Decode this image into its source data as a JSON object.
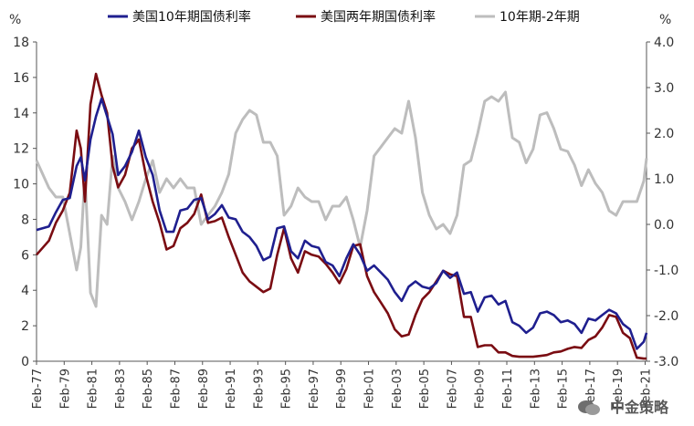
{
  "chart_data": {
    "type": "line",
    "units": {
      "left": "%",
      "right": "%"
    },
    "left_axis": {
      "range": [
        0,
        18
      ],
      "ticks": [
        "0",
        "2",
        "4",
        "6",
        "8",
        "10",
        "12",
        "14",
        "16",
        "18"
      ]
    },
    "right_axis": {
      "range": [
        -3.0,
        4.0
      ],
      "ticks": [
        "-3.0",
        "-2.0",
        "-1.0",
        "0.0",
        "1.0",
        "2.0",
        "3.0",
        "4.0"
      ]
    },
    "x_ticks": [
      "Feb-77",
      "Feb-79",
      "Feb-81",
      "Feb-83",
      "Feb-85",
      "Feb-87",
      "Feb-89",
      "Feb-91",
      "Feb-93",
      "Feb-95",
      "Feb-97",
      "Feb-99",
      "Feb-01",
      "Feb-03",
      "Feb-05",
      "Feb-07",
      "Feb-09",
      "Feb-11",
      "Feb-13",
      "Feb-15",
      "Feb-17",
      "Feb-19",
      "Feb-21"
    ],
    "x": [
      1977.1,
      1978.0,
      1978.5,
      1979.0,
      1979.5,
      1980.0,
      1980.3,
      1980.6,
      1981.0,
      1981.4,
      1981.8,
      1982.2,
      1982.6,
      1983.0,
      1983.5,
      1984.0,
      1984.5,
      1985.0,
      1985.5,
      1986.0,
      1986.5,
      1987.0,
      1987.5,
      1988.0,
      1988.5,
      1989.0,
      1989.5,
      1990.0,
      1990.5,
      1991.0,
      1991.5,
      1992.0,
      1992.5,
      1993.0,
      1993.5,
      1994.0,
      1994.5,
      1995.0,
      1995.5,
      1996.0,
      1996.5,
      1997.0,
      1997.5,
      1998.0,
      1998.5,
      1999.0,
      1999.5,
      2000.0,
      2000.5,
      2001.0,
      2001.5,
      2002.0,
      2002.5,
      2003.0,
      2003.5,
      2004.0,
      2004.5,
      2005.0,
      2005.5,
      2006.0,
      2006.5,
      2007.0,
      2007.5,
      2008.0,
      2008.5,
      2009.0,
      2009.5,
      2010.0,
      2010.5,
      2011.0,
      2011.5,
      2012.0,
      2012.5,
      2013.0,
      2013.5,
      2014.0,
      2014.5,
      2015.0,
      2015.5,
      2016.0,
      2016.5,
      2017.0,
      2017.5,
      2018.0,
      2018.5,
      2019.0,
      2019.5,
      2020.0,
      2020.5,
      2021.0,
      2021.2
    ],
    "series": [
      {
        "name": "美国10年期国债利率",
        "axis": "left",
        "color": "#1f1f8f",
        "values": [
          7.4,
          7.6,
          8.4,
          9.1,
          9.2,
          11.0,
          11.5,
          10.2,
          12.5,
          13.8,
          14.8,
          13.8,
          12.8,
          10.5,
          11.0,
          11.8,
          13.0,
          11.5,
          10.5,
          8.5,
          7.3,
          7.3,
          8.5,
          8.6,
          9.1,
          9.2,
          8.0,
          8.3,
          8.8,
          8.1,
          8.0,
          7.3,
          7.0,
          6.5,
          5.7,
          5.9,
          7.5,
          7.6,
          6.2,
          5.8,
          6.8,
          6.5,
          6.4,
          5.6,
          5.4,
          4.8,
          5.8,
          6.6,
          6.0,
          5.1,
          5.4,
          5.0,
          4.6,
          3.9,
          3.4,
          4.2,
          4.5,
          4.2,
          4.1,
          4.4,
          5.1,
          4.7,
          5.0,
          3.8,
          3.9,
          2.8,
          3.6,
          3.7,
          3.2,
          3.4,
          2.2,
          2.0,
          1.6,
          1.9,
          2.7,
          2.8,
          2.6,
          2.2,
          2.3,
          2.1,
          1.6,
          2.4,
          2.3,
          2.6,
          2.9,
          2.7,
          2.1,
          1.8,
          0.7,
          1.1,
          1.6
        ]
      },
      {
        "name": "美国两年期国债利率",
        "axis": "left",
        "color": "#7a0c12",
        "values": [
          6.0,
          6.8,
          7.8,
          8.5,
          9.5,
          13.0,
          12.0,
          9.0,
          14.5,
          16.2,
          15.0,
          14.0,
          11.0,
          9.8,
          10.5,
          12.0,
          12.5,
          10.5,
          9.0,
          7.8,
          6.3,
          6.5,
          7.5,
          7.8,
          8.3,
          9.4,
          7.8,
          7.9,
          8.1,
          7.0,
          6.0,
          5.0,
          4.5,
          4.2,
          3.9,
          4.1,
          6.0,
          7.5,
          5.8,
          5.0,
          6.2,
          6.0,
          5.9,
          5.5,
          5.0,
          4.4,
          5.2,
          6.5,
          6.6,
          4.8,
          3.9,
          3.3,
          2.7,
          1.8,
          1.4,
          1.5,
          2.6,
          3.5,
          3.9,
          4.5,
          5.1,
          4.9,
          4.8,
          2.5,
          2.5,
          0.8,
          0.9,
          0.9,
          0.5,
          0.5,
          0.3,
          0.25,
          0.25,
          0.25,
          0.3,
          0.35,
          0.5,
          0.55,
          0.7,
          0.8,
          0.75,
          1.2,
          1.4,
          1.9,
          2.6,
          2.5,
          1.6,
          1.3,
          0.2,
          0.15,
          0.15
        ]
      },
      {
        "name": "10年期-2年期",
        "axis": "right",
        "color": "#bdbdbd",
        "values": [
          1.4,
          0.8,
          0.6,
          0.6,
          -0.2,
          -1.0,
          -0.5,
          1.1,
          -1.5,
          -1.8,
          0.2,
          0.0,
          1.5,
          0.8,
          0.5,
          0.1,
          0.5,
          1.0,
          1.4,
          0.7,
          1.0,
          0.8,
          1.0,
          0.8,
          0.8,
          0.0,
          0.2,
          0.4,
          0.7,
          1.1,
          2.0,
          2.3,
          2.5,
          2.4,
          1.8,
          1.8,
          1.5,
          0.2,
          0.4,
          0.8,
          0.6,
          0.5,
          0.5,
          0.1,
          0.4,
          0.4,
          0.6,
          0.1,
          -0.5,
          0.3,
          1.5,
          1.7,
          1.9,
          2.1,
          2.0,
          2.7,
          1.9,
          0.7,
          0.2,
          -0.1,
          0.0,
          -0.2,
          0.2,
          1.3,
          1.4,
          2.0,
          2.7,
          2.8,
          2.7,
          2.9,
          1.9,
          1.8,
          1.35,
          1.65,
          2.4,
          2.45,
          2.1,
          1.65,
          1.6,
          1.3,
          0.85,
          1.2,
          0.9,
          0.7,
          0.3,
          0.2,
          0.5,
          0.5,
          0.5,
          0.95,
          1.45
        ]
      }
    ],
    "legend": {
      "placement": "top"
    }
  },
  "watermark": {
    "text": "中金策略"
  }
}
